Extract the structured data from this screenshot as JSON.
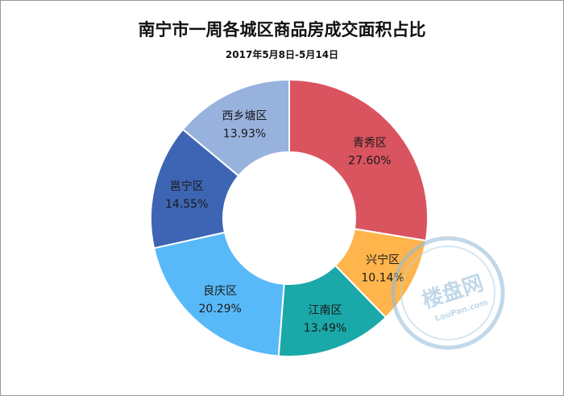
{
  "chart_data": {
    "type": "pie",
    "variant": "donut",
    "title": "南宁市一周各城区商品房成交面积占比",
    "subtitle": "2017年5月8日-5月14日",
    "slices": [
      {
        "name": "青秀区",
        "value": 27.6,
        "label": "27.60%",
        "color": "#d9545f"
      },
      {
        "name": "兴宁区",
        "value": 10.14,
        "label": "10.14%",
        "color": "#ffb54c"
      },
      {
        "name": "江南区",
        "value": 13.49,
        "label": "13.49%",
        "color": "#1aa8a8"
      },
      {
        "name": "良庆区",
        "value": 20.29,
        "label": "20.29%",
        "color": "#58b9f8"
      },
      {
        "name": "邕宁区",
        "value": 14.55,
        "label": "14.55%",
        "color": "#3d65b3"
      },
      {
        "name": "西乡塘区",
        "value": 13.93,
        "label": "13.93%",
        "color": "#98b2de"
      }
    ],
    "legend": "none"
  },
  "watermark": {
    "brand": "楼盘网",
    "domain": "LouPan.com"
  }
}
